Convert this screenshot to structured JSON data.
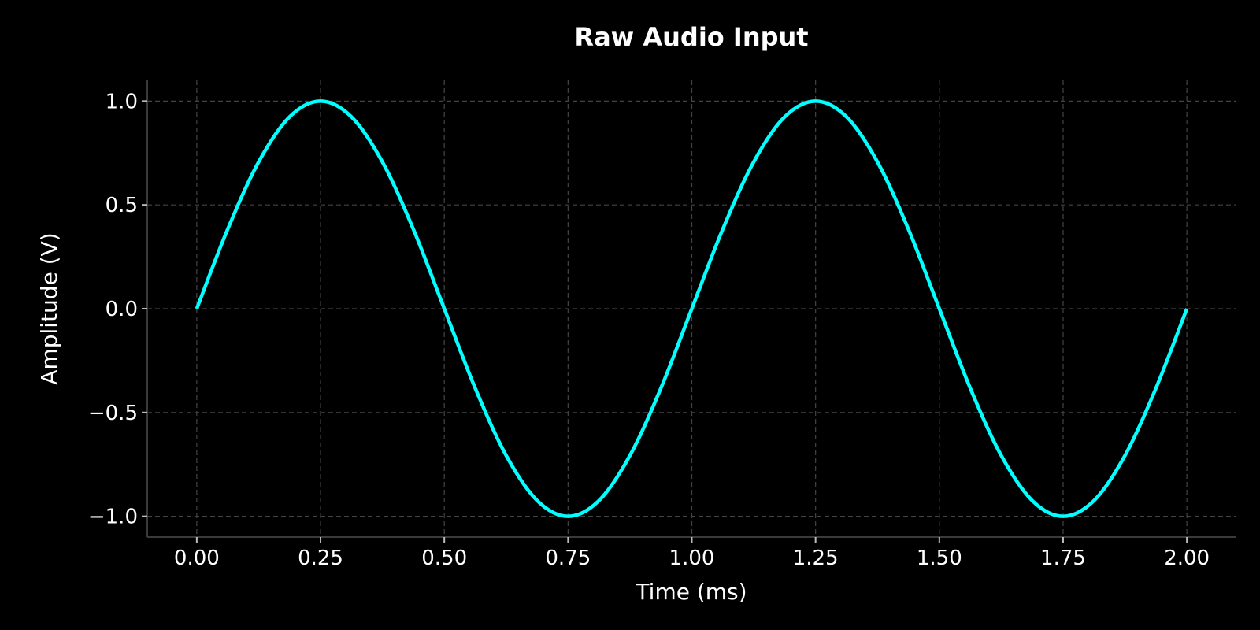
{
  "chart_data": {
    "type": "line",
    "title": "Raw Audio Input",
    "xlabel": "Time (ms)",
    "ylabel": "Amplitude (V)",
    "xlim": [
      -0.1,
      2.1
    ],
    "ylim": [
      -1.1,
      1.1
    ],
    "xticks": [
      0.0,
      0.25,
      0.5,
      0.75,
      1.0,
      1.25,
      1.5,
      1.75,
      2.0
    ],
    "xtick_labels": [
      "0.00",
      "0.25",
      "0.50",
      "0.75",
      "1.00",
      "1.25",
      "1.50",
      "1.75",
      "2.00"
    ],
    "yticks": [
      1.0,
      0.5,
      0.0,
      -0.5,
      -1.0
    ],
    "ytick_labels": [
      "1.0",
      "0.5",
      "0.0",
      "−0.5",
      "−1.0"
    ],
    "grid": true,
    "series": [
      {
        "x": [
          0.0,
          0.0625,
          0.125,
          0.1875,
          0.25,
          0.3125,
          0.375,
          0.4375,
          0.5,
          0.5625,
          0.625,
          0.6875,
          0.75,
          0.8125,
          0.875,
          0.9375,
          1.0,
          1.0625,
          1.125,
          1.1875,
          1.25,
          1.3125,
          1.375,
          1.4375,
          1.5,
          1.5625,
          1.625,
          1.6875,
          1.75,
          1.8125,
          1.875,
          1.9375,
          2.0
        ],
        "values": [
          0.0,
          0.383,
          0.707,
          0.924,
          1.0,
          0.924,
          0.707,
          0.383,
          0.0,
          -0.383,
          -0.707,
          -0.924,
          -1.0,
          -0.924,
          -0.707,
          -0.383,
          0.0,
          0.383,
          0.707,
          0.924,
          1.0,
          0.924,
          0.707,
          0.383,
          0.0,
          -0.383,
          -0.707,
          -0.924,
          -1.0,
          -0.924,
          -0.707,
          -0.383,
          0.0
        ],
        "color": "#00ffff"
      }
    ]
  },
  "colors": {
    "background": "#000000",
    "text": "#ffffff",
    "grid": "#444444",
    "line": "#00ffff"
  }
}
